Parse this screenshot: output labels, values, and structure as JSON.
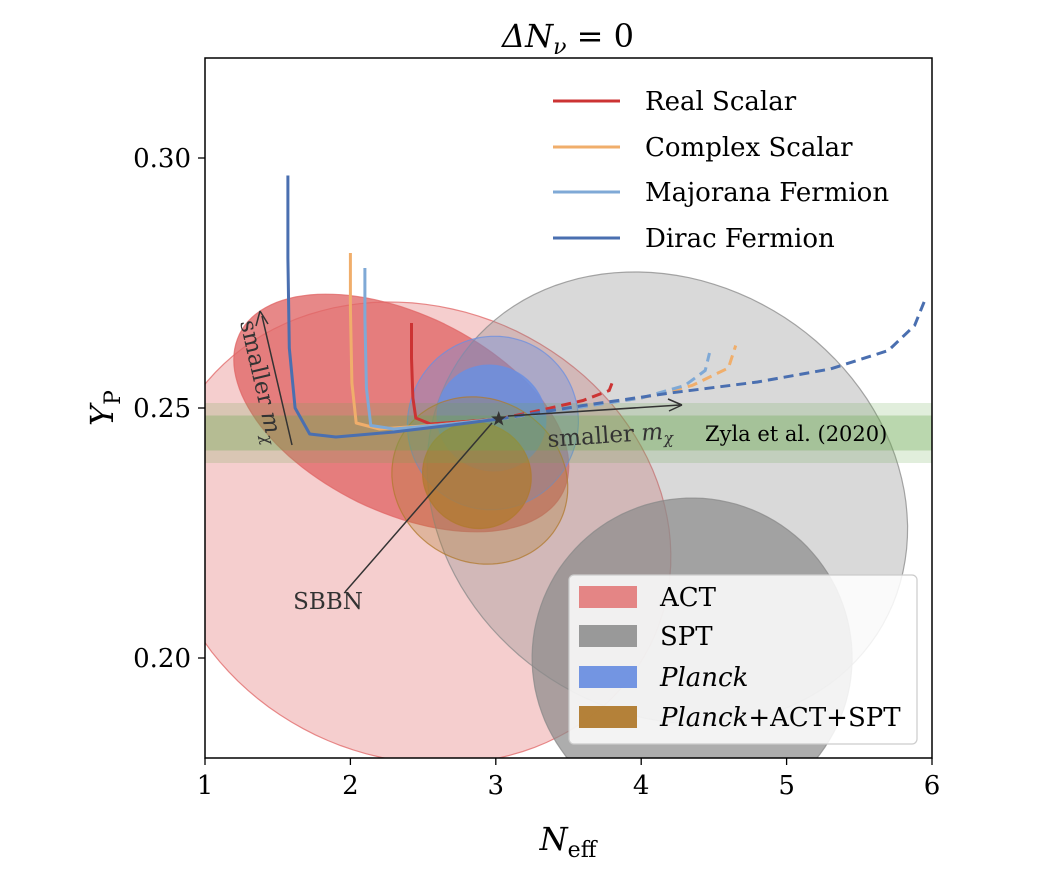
{
  "chart_data": {
    "type": "contour-line",
    "title": "ΔN_ν = 0",
    "title_parts": {
      "main": "ΔN",
      "sub": "ν",
      "rest": " = 0"
    },
    "xlabel": "N_eff",
    "xlabel_parts": {
      "main": "N",
      "sub": "eff"
    },
    "ylabel": "Y_P",
    "ylabel_parts": {
      "main": "Y",
      "sub": "P"
    },
    "xlim": [
      1,
      6
    ],
    "ylim": [
      0.18,
      0.32
    ],
    "xticks": [
      1,
      2,
      3,
      4,
      5,
      6
    ],
    "xtick_labels": [
      "1",
      "2",
      "3",
      "4",
      "5",
      "6"
    ],
    "yticks": [
      0.2,
      0.25,
      0.3
    ],
    "ytick_labels": [
      "0.20",
      "0.25",
      "0.30"
    ],
    "grid": false,
    "contours": [
      {
        "name": "ACT",
        "color": "#e06666",
        "levels": [
          {
            "cx": 2.45,
            "cy": 0.225,
            "rx": 1.55,
            "ry": 0.052,
            "angle_deg": -67,
            "opacity": 0.32
          },
          {
            "cx": 2.35,
            "cy": 0.249,
            "rx": 0.68,
            "ry": 0.036,
            "angle_deg": -64,
            "opacity": 0.78
          }
        ]
      },
      {
        "name": "SPT",
        "color": "#8a8a8a",
        "levels": [
          {
            "cx": 4.18,
            "cy": 0.232,
            "rx": 1.48,
            "ry": 0.05,
            "angle_deg": -57,
            "opacity": 0.32
          },
          {
            "cx": 4.35,
            "cy": 0.2,
            "rx": 1.1,
            "ry": 0.032,
            "angle_deg": -62,
            "opacity": 0.7
          }
        ]
      },
      {
        "name": "Planck",
        "color": "#6b8fe0",
        "levels": [
          {
            "cx": 2.98,
            "cy": 0.247,
            "rx": 0.6,
            "ry": 0.017,
            "angle_deg": -62,
            "opacity": 0.38
          },
          {
            "cx": 2.97,
            "cy": 0.248,
            "rx": 0.36,
            "ry": 0.011,
            "angle_deg": -62,
            "opacity": 0.85
          }
        ]
      },
      {
        "name": "Planck+ACT+SPT",
        "color": "#b07a2e",
        "levels": [
          {
            "cx": 2.89,
            "cy": 0.2355,
            "rx": 0.56,
            "ry": 0.018,
            "angle_deg": -60,
            "opacity": 0.3
          },
          {
            "cx": 2.87,
            "cy": 0.2365,
            "rx": 0.36,
            "ry": 0.011,
            "angle_deg": -60,
            "opacity": 0.72
          }
        ]
      }
    ],
    "band": {
      "label": "Zyla et al. (2020)",
      "color": "#6aa84f",
      "y_center": 0.245,
      "half_width_inner": 0.0035,
      "half_width_outer": 0.006
    },
    "series": [
      {
        "name": "Real Scalar",
        "color": "#cc3333",
        "solid": {
          "x": [
            2.42,
            2.42,
            2.43,
            2.45,
            2.55,
            2.75,
            3.02
          ],
          "y": [
            0.267,
            0.26,
            0.252,
            0.248,
            0.2468,
            0.2472,
            0.2478
          ]
        },
        "dashed": {
          "x": [
            3.02,
            3.3,
            3.6,
            3.78,
            3.81
          ],
          "y": [
            0.2478,
            0.2495,
            0.2515,
            0.2535,
            0.2558
          ]
        }
      },
      {
        "name": "Complex Scalar",
        "color": "#f0ae6b",
        "solid": {
          "x": [
            2.0,
            2.0,
            2.01,
            2.04,
            2.2,
            2.6,
            3.02
          ],
          "y": [
            0.281,
            0.27,
            0.255,
            0.247,
            0.2458,
            0.2466,
            0.2478
          ]
        },
        "dashed": {
          "x": [
            3.02,
            3.5,
            4.0,
            4.35,
            4.6,
            4.65
          ],
          "y": [
            0.2478,
            0.2498,
            0.252,
            0.2545,
            0.258,
            0.2625
          ]
        }
      },
      {
        "name": "Majorana Fermion",
        "color": "#7fa9d6",
        "solid": {
          "x": [
            2.1,
            2.1,
            2.11,
            2.14,
            2.3,
            2.65,
            3.02
          ],
          "y": [
            0.278,
            0.268,
            0.254,
            0.2465,
            0.2458,
            0.2467,
            0.2478
          ]
        },
        "dashed": {
          "x": [
            3.02,
            3.5,
            4.0,
            4.3,
            4.44,
            4.47
          ],
          "y": [
            0.2478,
            0.2498,
            0.252,
            0.2545,
            0.2575,
            0.261
          ]
        }
      },
      {
        "name": "Dirac Fermion",
        "color": "#4a6fb0",
        "solid": {
          "x": [
            1.57,
            1.57,
            1.58,
            1.62,
            1.72,
            1.9,
            2.3,
            2.7,
            3.02
          ],
          "y": [
            0.2965,
            0.28,
            0.262,
            0.25,
            0.2448,
            0.2442,
            0.2452,
            0.2466,
            0.2478
          ]
        },
        "dashed": {
          "x": [
            3.02,
            3.6,
            4.2,
            4.8,
            5.3,
            5.7,
            5.88,
            5.95
          ],
          "y": [
            0.2478,
            0.2505,
            0.253,
            0.2552,
            0.2578,
            0.2615,
            0.2665,
            0.2715
          ]
        }
      }
    ],
    "sbbn_point": {
      "x": 3.02,
      "y": 0.2478,
      "label": "SBBN"
    },
    "annotations": {
      "smaller_left": {
        "text_main": "smaller ",
        "text_math": "m",
        "text_sub": "χ"
      },
      "smaller_right": {
        "text_main": "smaller ",
        "text_math": "m",
        "text_sub": "χ"
      }
    },
    "line_legend": {
      "placement": "top-right",
      "entries": [
        "Real Scalar",
        "Complex Scalar",
        "Majorana Fermion",
        "Dirac Fermion"
      ]
    },
    "contour_legend": {
      "placement": "bottom-right",
      "entries": [
        "ACT",
        "SPT",
        "Planck",
        "Planck+ACT+SPT"
      ],
      "italic_part": {
        "Planck": "Planck",
        "Planck+ACT+SPT": "Planck"
      }
    }
  }
}
